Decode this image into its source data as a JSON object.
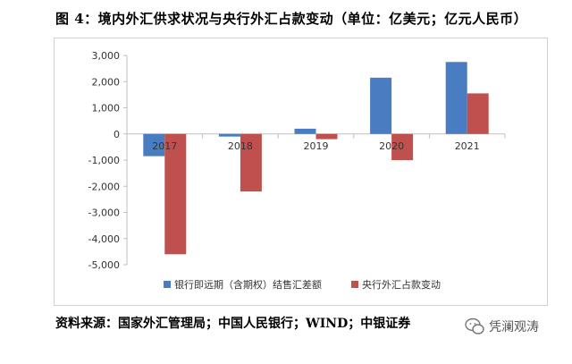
{
  "title": "图 4：境内外汇供求状况与央行外汇占款变动（单位：亿美元；亿元人民币）",
  "source": "资料来源：国家外汇管理局；中国人民银行；WIND；中银证券",
  "watermark": "凭澜观涛",
  "colors": {
    "series1": "#4a7cc2",
    "series2": "#c0504d",
    "axis": "#bfbfbf",
    "text": "#333333"
  },
  "chart_data": {
    "type": "bar",
    "categories": [
      "2017",
      "2018",
      "2019",
      "2020",
      "2021"
    ],
    "series": [
      {
        "name": "银行即远期（含期权）结售汇差额",
        "values": [
          -850,
          -100,
          200,
          2150,
          2750
        ]
      },
      {
        "name": "央行外汇占款变动",
        "values": [
          -4600,
          -2200,
          -200,
          -1000,
          1550
        ]
      }
    ],
    "yticks": [
      "3,000",
      "2,000",
      "1,000",
      "0",
      "-1,000",
      "-2,000",
      "-3,000",
      "-4,000",
      "-5,000"
    ],
    "ylim": [
      -5000,
      3000
    ],
    "legend_position": "bottom",
    "grid": false
  }
}
